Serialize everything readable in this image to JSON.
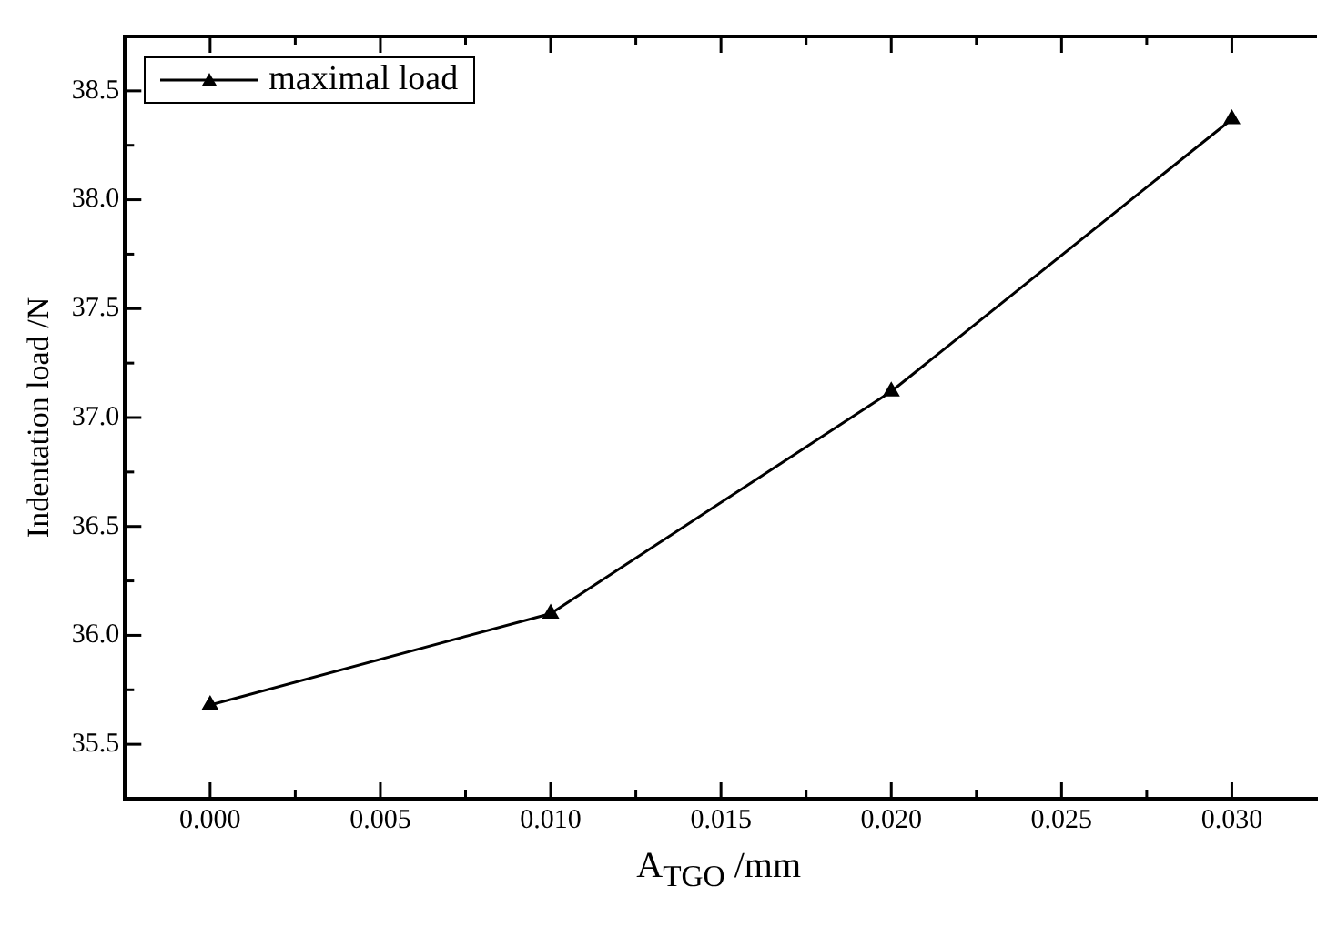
{
  "chart_data": {
    "type": "line",
    "xlabel": "A$_{TGO}$ /mm",
    "ylabel": "Indentation load /N",
    "x": [
      0,
      0.01,
      0.02,
      0.03
    ],
    "series": [
      {
        "name": "maximal load",
        "color": "#000000",
        "values": [
          35.68,
          36.1,
          37.12,
          38.37
        ]
      }
    ],
    "xlim": [
      -0.0025,
      0.0325
    ],
    "xticks": [
      {
        "value": 0,
        "label": "0.000"
      },
      {
        "value": 0.0025,
        "label": null
      },
      {
        "value": 0.005,
        "label": "0.005"
      },
      {
        "value": 0.0075,
        "label": null
      },
      {
        "value": 0.01,
        "label": "0.010"
      },
      {
        "value": 0.0125,
        "label": null
      },
      {
        "value": 0.015,
        "label": "0.015"
      },
      {
        "value": 0.0175,
        "label": null
      },
      {
        "value": 0.02,
        "label": "0.020"
      },
      {
        "value": 0.0225,
        "label": null
      },
      {
        "value": 0.025,
        "label": "0.025"
      },
      {
        "value": 0.0275,
        "label": null
      },
      {
        "value": 0.03,
        "label": "0.030"
      }
    ],
    "ylim": [
      35.25,
      38.75
    ],
    "yticks": [
      {
        "value": 35.5,
        "label": "35.5"
      },
      {
        "value": 35.75,
        "label": null
      },
      {
        "value": 36,
        "label": "36.0"
      },
      {
        "value": 36.25,
        "label": null
      },
      {
        "value": 36.5,
        "label": "36.5"
      },
      {
        "value": 36.75,
        "label": null
      },
      {
        "value": 37,
        "label": "37.0"
      },
      {
        "value": 37.25,
        "label": null
      },
      {
        "value": 37.5,
        "label": "37.5"
      },
      {
        "value": 37.75,
        "label": null
      },
      {
        "value": 38,
        "label": "38.0"
      },
      {
        "value": 38.25,
        "label": null
      },
      {
        "value": 38.5,
        "label": "38.5"
      }
    ],
    "grid": false,
    "legend": "top left",
    "marker": "triangle",
    "line_style": "solid"
  }
}
